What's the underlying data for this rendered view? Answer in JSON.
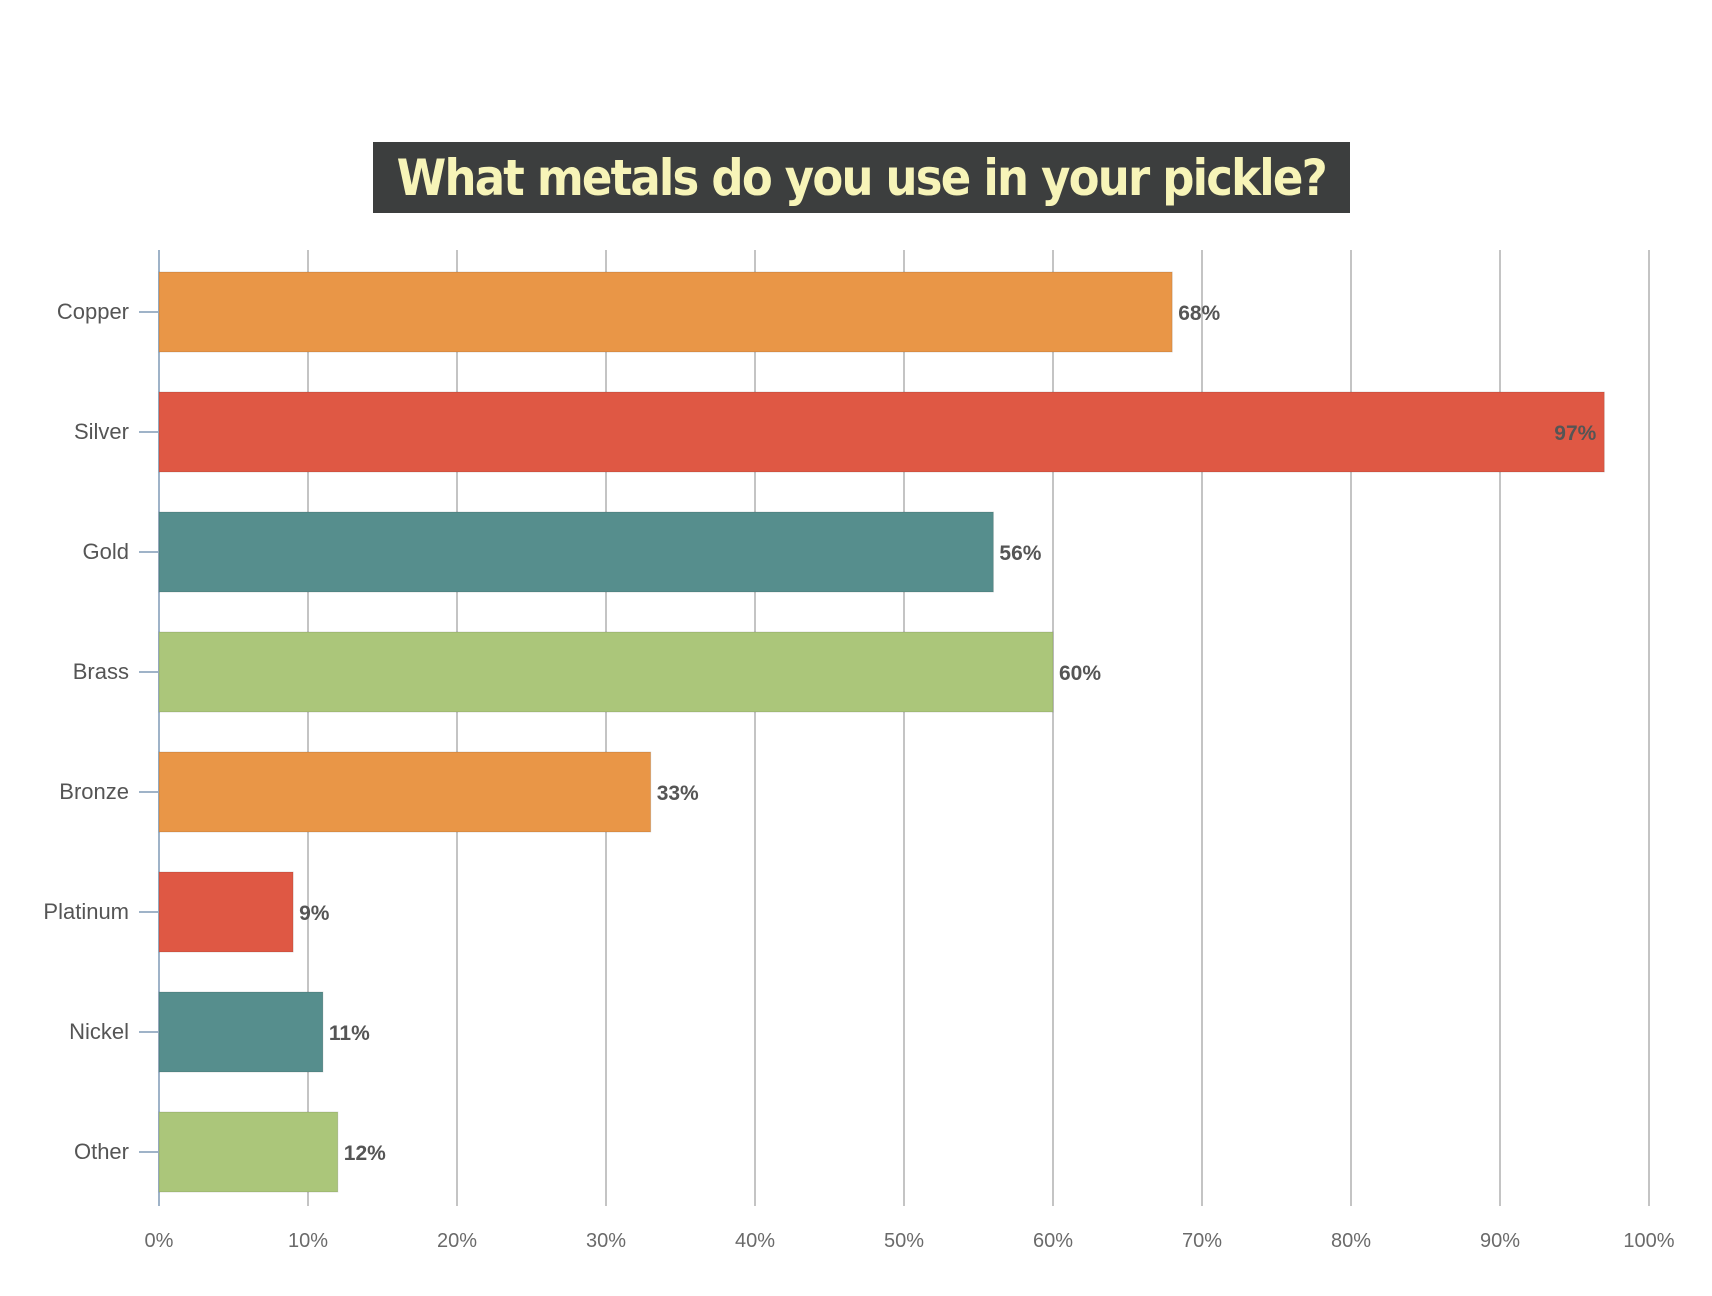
{
  "chart_data": {
    "type": "bar",
    "orientation": "horizontal",
    "title": "What metals do you use in your pickle?",
    "categories": [
      "Copper",
      "Silver",
      "Gold",
      "Brass",
      "Bronze",
      "Platinum",
      "Nickel",
      "Other"
    ],
    "values": [
      68,
      97,
      56,
      60,
      33,
      9,
      11,
      12
    ],
    "data_labels": [
      "68%",
      "97%",
      "56%",
      "60%",
      "33%",
      "9%",
      "11%",
      "12%"
    ],
    "xlim": [
      0,
      100
    ],
    "x_ticks": [
      0,
      10,
      20,
      30,
      40,
      50,
      60,
      70,
      80,
      90,
      100
    ],
    "x_tick_labels": [
      "0%",
      "10%",
      "20%",
      "30%",
      "40%",
      "50%",
      "60%",
      "70%",
      "80%",
      "90%",
      "100%"
    ],
    "xlabel": "",
    "ylabel": "",
    "grid": "vertical",
    "legend": "none",
    "colors": [
      "#e99647",
      "#df5844",
      "#568e8d",
      "#abc67a",
      "#e99647",
      "#df5844",
      "#568e8d",
      "#abc67a"
    ],
    "title_background": "#3c3e3e",
    "title_color": "#f7f4b8"
  }
}
